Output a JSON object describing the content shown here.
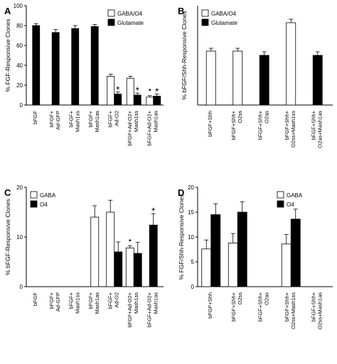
{
  "chart_data": [
    {
      "panel": "A",
      "type": "bar",
      "ylabel": "% FGF-Responsive Clones",
      "ylim": [
        0,
        100
      ],
      "yticks": [
        0,
        20,
        40,
        60,
        80,
        100
      ],
      "legend": [
        "GABA/O4",
        "Glutamate"
      ],
      "legend_position": "top-right",
      "categories": [
        [
          "bFGF"
        ],
        [
          "bFGF+",
          "Ad-GFP"
        ],
        [
          "bFGF+",
          "Mash1ss"
        ],
        [
          "bFGF+",
          "Mash1as"
        ],
        [
          "bFGF+",
          "Ad-O2"
        ],
        [
          "bFGF+Ad-O2+",
          "Mash1ss"
        ],
        [
          "bFGF+Ad-O2+",
          "Mash1as"
        ]
      ],
      "series": [
        {
          "name": "GABA/O4",
          "values": [
            null,
            null,
            null,
            null,
            29,
            27,
            8
          ],
          "errors": [
            null,
            null,
            null,
            null,
            2,
            2,
            1.5
          ],
          "stars": [
            "",
            "",
            "",
            "",
            "",
            "",
            "*"
          ]
        },
        {
          "name": "Glutamate",
          "values": [
            80,
            73,
            77,
            79,
            11,
            10,
            9
          ],
          "errors": [
            2,
            3,
            3,
            2,
            2,
            2,
            2
          ],
          "stars": [
            "",
            "",
            "",
            "",
            "+",
            "+",
            "+"
          ]
        }
      ]
    },
    {
      "panel": "B",
      "type": "bar",
      "ylabel": "% bFGF/Shh-Responsive Clones",
      "ylim": [
        0,
        70
      ],
      "yticks": [],
      "legend": [
        "GABA/O4",
        "Glutamate"
      ],
      "legend_position": "top-left",
      "categories": [
        [
          "bFGF+Shh"
        ],
        [
          "bFGF+Shh+",
          "O2ss"
        ],
        [
          "bFGF+Shh+",
          "O2as"
        ],
        [
          "bFGF+Shh+",
          "O2ss+Mash1ss"
        ],
        [
          "bFGF+Shh+",
          "O2as+Mash1as"
        ]
      ],
      "series": [
        {
          "name": "GABA/O4",
          "values": [
            38,
            38,
            null,
            58,
            null
          ],
          "errors": [
            2,
            2,
            null,
            2.5,
            null
          ],
          "stars": [
            "",
            "",
            "",
            "",
            ""
          ]
        },
        {
          "name": "Glutamate",
          "values": [
            null,
            null,
            35,
            null,
            35
          ],
          "errors": [
            null,
            null,
            2.5,
            null,
            2.5
          ],
          "stars": [
            "",
            "",
            "",
            "",
            ""
          ]
        }
      ]
    },
    {
      "panel": "C",
      "type": "bar",
      "ylabel": "% bFGF-Responsive Clones",
      "ylim": [
        0,
        20
      ],
      "yticks": [
        0,
        10,
        20
      ],
      "legend": [
        "GABA",
        "O4"
      ],
      "legend_position": "top-left",
      "categories": [
        [
          "bFGF"
        ],
        [
          "bFGF+",
          "Ad-GFP"
        ],
        [
          "bFGF+",
          "Mash1ss"
        ],
        [
          "bFGF+",
          "Mash1as"
        ],
        [
          "bFGF+",
          "Ad-O2"
        ],
        [
          "bFGF+Ad-O2+",
          "Mash1ss"
        ],
        [
          "bFGF+Ad-O2+",
          "Mash1as"
        ]
      ],
      "series": [
        {
          "name": "GABA",
          "values": [
            null,
            null,
            null,
            14,
            15,
            7.8,
            null
          ],
          "errors": [
            null,
            null,
            null,
            2.3,
            2.4,
            0.4,
            null
          ],
          "stars": [
            "",
            "",
            "",
            "",
            "",
            "*",
            ""
          ]
        },
        {
          "name": "O4",
          "values": [
            null,
            null,
            null,
            null,
            7,
            6.7,
            12.4
          ],
          "errors": [
            null,
            null,
            null,
            null,
            2,
            2.2,
            2.3
          ],
          "stars": [
            "",
            "",
            "",
            "",
            "",
            "",
            "+"
          ]
        }
      ],
      "layout_slots": "paired"
    },
    {
      "panel": "D",
      "type": "bar",
      "ylabel": "% FGF/Shh-Responsive Clones",
      "ylim": [
        0,
        20
      ],
      "yticks": [
        0,
        5,
        10,
        15,
        20
      ],
      "legend": [
        "GABA",
        "O4"
      ],
      "legend_position": "top-right",
      "categories": [
        [
          "bFGF+Shh"
        ],
        [
          "bFGF+Shh+",
          "O2ss"
        ],
        [
          "bFGF+Shh+",
          "O2as"
        ],
        [
          "bFGF+Shh+",
          "O2ss+Mash1ss"
        ],
        [
          "bFGF+Shh+",
          "O2ss+Mash1as"
        ]
      ],
      "series": [
        {
          "name": "GABA",
          "values": [
            7.6,
            8.8,
            null,
            8.6,
            null
          ],
          "errors": [
            1.8,
            1.9,
            null,
            1.9,
            null
          ],
          "stars": [
            "",
            "",
            "",
            "",
            ""
          ]
        },
        {
          "name": "O4",
          "values": [
            14.5,
            15,
            null,
            13.6,
            null
          ],
          "errors": [
            2.2,
            2.1,
            null,
            2,
            null
          ],
          "stars": [
            "",
            "",
            "",
            "",
            ""
          ]
        }
      ]
    }
  ],
  "panel_letters": [
    "A",
    "B",
    "C",
    "D"
  ]
}
